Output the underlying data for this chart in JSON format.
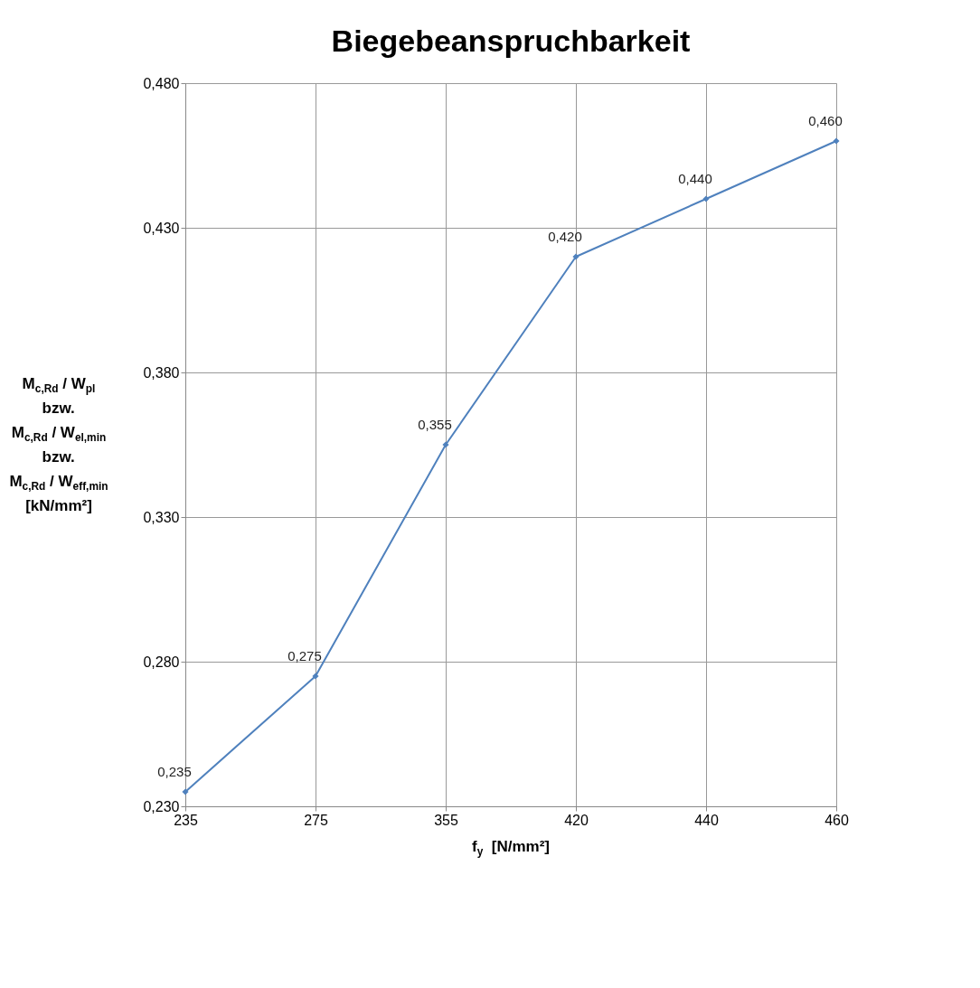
{
  "chart_data": {
    "type": "line",
    "title": "Biegebeanspruchbarkeit",
    "xlabel": "f$_{y}$  [N/mm²]",
    "ylabel": "M$_{c,Rd}$ / W$_{pl}$\nbzw.\nM$_{c,Rd}$ / W$_{el,min}$\nbzw.\nM$_{c,Rd}$ / W$_{eff,min}$\n[kN/mm²]",
    "categories": [
      "235",
      "275",
      "355",
      "420",
      "440",
      "460"
    ],
    "series": [
      {
        "color": "#4f81bd",
        "values": [
          0.235,
          0.275,
          0.355,
          0.42,
          0.44,
          0.46
        ],
        "value_labels": [
          "0,235",
          "0,275",
          "0,355",
          "0,420",
          "0,440",
          "0,460"
        ]
      }
    ],
    "ylim": [
      0.23,
      0.48
    ],
    "yticks": [
      {
        "value": 0.23,
        "label": "0,230"
      },
      {
        "value": 0.28,
        "label": "0,280"
      },
      {
        "value": 0.33,
        "label": "0,330"
      },
      {
        "value": 0.38,
        "label": "0,380"
      },
      {
        "value": 0.43,
        "label": "0,430"
      },
      {
        "value": 0.48,
        "label": "0,480"
      }
    ],
    "grid": true,
    "marker": "diamond",
    "line_style": "solid"
  }
}
